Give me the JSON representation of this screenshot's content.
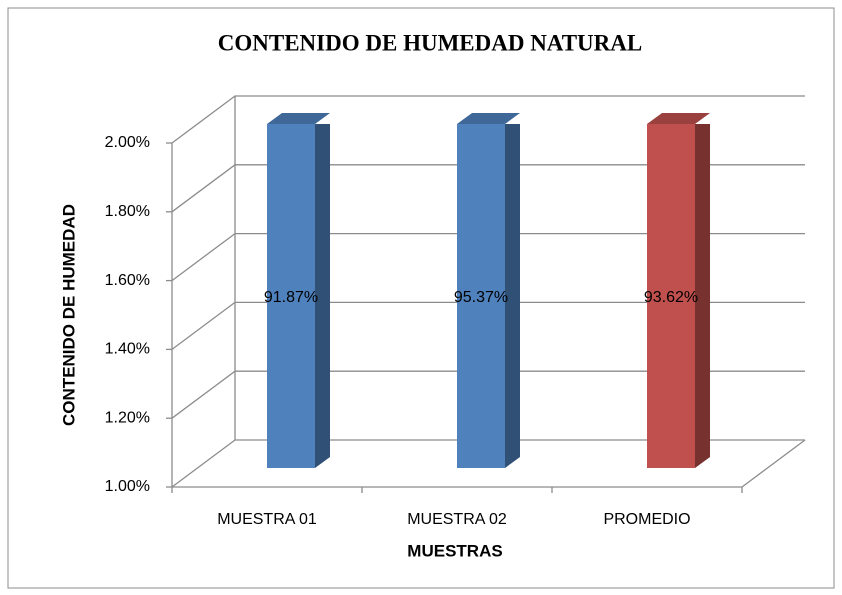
{
  "chart_data": {
    "type": "bar3d",
    "title": "CONTENIDO DE HUMEDAD NATURAL",
    "xlabel": "MUESTRAS",
    "ylabel": "CONTENIDO DE HUMEDAD",
    "categories": [
      "MUESTRA 01",
      "MUESTRA 02",
      "PROMEDIO"
    ],
    "values": [
      91.87,
      95.37,
      93.62
    ],
    "value_labels": [
      "91.87%",
      "95.37%",
      "93.62%"
    ],
    "colors": [
      "#4f81bd",
      "#4f81bd",
      "#c0504d"
    ],
    "ylim": [
      1,
      2
    ],
    "yticks": [
      {
        "value": 1,
        "label": "1.00%"
      },
      {
        "value": 1.2,
        "label": "1.20%"
      },
      {
        "value": 1.4,
        "label": "1.40%"
      },
      {
        "value": 1.6,
        "label": "1.60%"
      },
      {
        "value": 1.8,
        "label": "1.80%"
      },
      {
        "value": 2,
        "label": "2.00%"
      }
    ],
    "grid": true
  }
}
